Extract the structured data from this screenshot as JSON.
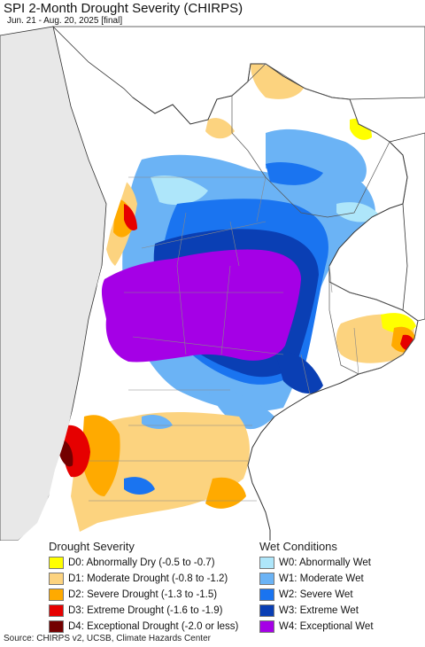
{
  "title": "SPI 2-Month Drought Severity (CHIRPS)",
  "subtitle": "Jun. 21 - Aug. 20, 2025 [final]",
  "colors": {
    "ocean": "#ffffff",
    "land_outside": "#e8e8e8",
    "no_change": "#ffffff",
    "border": "#333333",
    "province_border": "#888888"
  },
  "legend": {
    "drought": {
      "title": "Drought Severity",
      "items": [
        {
          "code": "D0",
          "label": "D0: Abnormally Dry (-0.5 to -0.7)",
          "color": "#ffff00"
        },
        {
          "code": "D1",
          "label": "D1: Moderate Drought (-0.8 to -1.2)",
          "color": "#fcd37f"
        },
        {
          "code": "D2",
          "label": "D2: Severe Drought (-1.3 to -1.5)",
          "color": "#ffaa00"
        },
        {
          "code": "D3",
          "label": "D3: Extreme Drought (-1.6 to -1.9)",
          "color": "#e60000"
        },
        {
          "code": "D4",
          "label": "D4: Exceptional Drought (-2.0 or less)",
          "color": "#730000"
        }
      ]
    },
    "wet": {
      "title": "Wet Conditions",
      "items": [
        {
          "code": "W0",
          "label": "W0: Abnormally Wet",
          "color": "#aee6fa"
        },
        {
          "code": "W1",
          "label": "W1: Moderate Wet",
          "color": "#6bb3f5"
        },
        {
          "code": "W2",
          "label": "W2: Severe Wet",
          "color": "#1a74f0"
        },
        {
          "code": "W3",
          "label": "W3: Extreme Wet",
          "color": "#0a3fb4"
        },
        {
          "code": "W4",
          "label": "W4: Exceptional Wet",
          "color": "#a500e6"
        }
      ]
    }
  },
  "source": "Source: CHIRPS v2, UCSB, Climate Hazards Center"
}
